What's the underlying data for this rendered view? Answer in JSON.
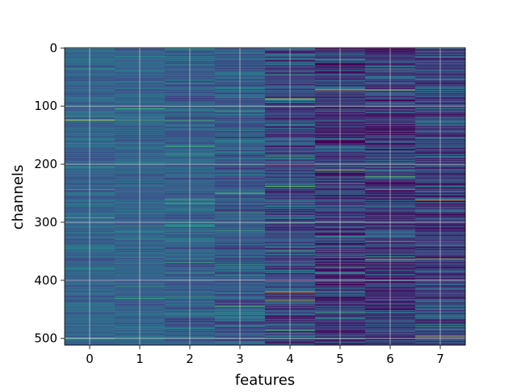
{
  "chart_data": {
    "type": "heatmap",
    "title": "",
    "xlabel": "features",
    "ylabel": "channels",
    "x_categories": [
      "0",
      "1",
      "2",
      "3",
      "4",
      "5",
      "6",
      "7"
    ],
    "y_ticks": [
      "0",
      "100",
      "200",
      "300",
      "400",
      "500"
    ],
    "n_rows": 512,
    "n_cols": 8,
    "ylim": [
      0,
      512
    ],
    "y_inverted": true,
    "grid": true,
    "colormap": "viridis",
    "colors": {
      "low": "#46337f",
      "mid_low": "#3b528b",
      "mid": "#2c728e",
      "mid_high": "#21918c",
      "high": "#5ec962",
      "max": "#fde725",
      "grid": "#dcdcdc",
      "axes": "#000000"
    },
    "column_baseline": [
      0.32,
      0.32,
      0.3,
      0.28,
      0.22,
      0.18,
      0.18,
      0.2
    ],
    "column_spread": [
      0.1,
      0.1,
      0.12,
      0.14,
      0.2,
      0.24,
      0.24,
      0.22
    ],
    "bright_lines": [
      {
        "col": 0,
        "row": 124,
        "value": 0.95
      },
      {
        "col": 1,
        "row": 124,
        "value": 0.7
      },
      {
        "col": 4,
        "row": 88,
        "value": 0.95
      },
      {
        "col": 4,
        "row": 238,
        "value": 0.8
      },
      {
        "col": 4,
        "row": 420,
        "value": 0.95
      },
      {
        "col": 4,
        "row": 435,
        "value": 0.9
      },
      {
        "col": 5,
        "row": 72,
        "value": 0.95
      },
      {
        "col": 5,
        "row": 210,
        "value": 0.85
      },
      {
        "col": 6,
        "row": 72,
        "value": 0.9
      },
      {
        "col": 6,
        "row": 222,
        "value": 0.8
      },
      {
        "col": 6,
        "row": 364,
        "value": 0.85
      },
      {
        "col": 7,
        "row": 262,
        "value": 0.95
      },
      {
        "col": 7,
        "row": 363,
        "value": 0.85
      },
      {
        "col": 7,
        "row": 496,
        "value": 0.95
      },
      {
        "col": 3,
        "row": 250,
        "value": 0.75
      },
      {
        "col": 3,
        "row": 445,
        "value": 0.7
      }
    ]
  }
}
